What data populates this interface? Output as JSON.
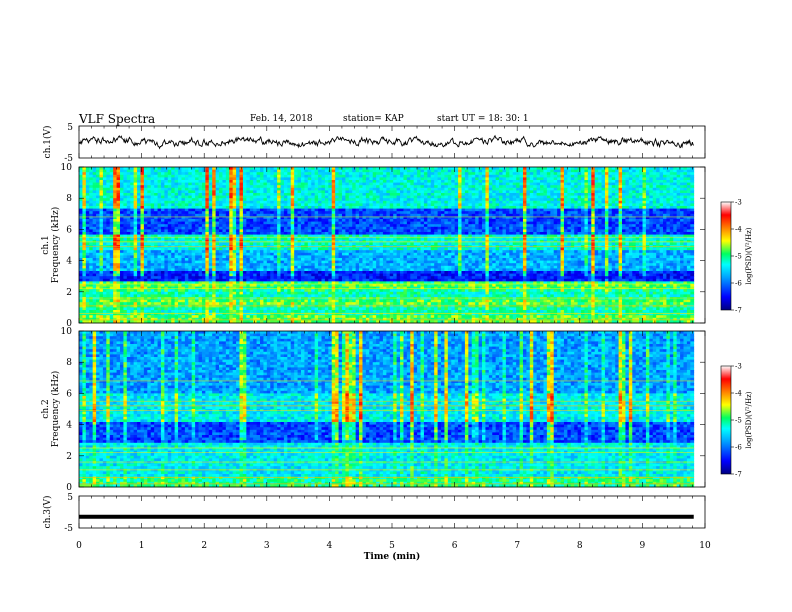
{
  "header": {
    "title": "VLF Spectra",
    "date": "Feb. 14, 2018",
    "station": "station= KAP",
    "start": "start  UT =   18: 30: 1"
  },
  "chart_data": [
    {
      "type": "line",
      "panel": "ch1-waveform",
      "ylabel": "ch.1(V)",
      "ylim": [
        -5,
        5
      ],
      "yticks": [
        "5",
        "-5"
      ],
      "xlim": [
        0,
        10
      ],
      "series": [
        {
          "description_only": true,
          "mean": 0,
          "approx_amplitude": 1.5
        }
      ]
    },
    {
      "type": "heatmap",
      "panel": "ch1-spectrogram",
      "ylabel_line1": "ch.1",
      "ylabel_line2": "Frequency  (kHz)",
      "ylim": [
        0,
        10
      ],
      "yticks": [
        "0",
        "2",
        "4",
        "6",
        "8",
        "10"
      ],
      "xlim": [
        0,
        10
      ],
      "data_extent_x": 9.82,
      "colorbar": {
        "label": "log(PSD)(V²/Hz)",
        "range": [
          -7,
          -3
        ],
        "ticks": [
          "-3",
          "-4",
          "-5",
          "-6",
          "-7"
        ]
      }
    },
    {
      "type": "heatmap",
      "panel": "ch2-spectrogram",
      "ylabel_line1": "ch.2",
      "ylabel_line2": "Frequency  (kHz)",
      "ylim": [
        0,
        10
      ],
      "yticks": [
        "0",
        "2",
        "4",
        "6",
        "8",
        "10"
      ],
      "xlim": [
        0,
        10
      ],
      "data_extent_x": 9.82,
      "colorbar": {
        "label": "log(PSD)(V²/Hz)",
        "range": [
          -7,
          -3
        ],
        "ticks": [
          "-3",
          "-4",
          "-5",
          "-6",
          "-7"
        ]
      }
    },
    {
      "type": "line",
      "panel": "ch3-waveform",
      "ylabel": "ch.3(V)",
      "ylim": [
        -5,
        5
      ],
      "yticks": [
        "5",
        "-5"
      ],
      "xlim": [
        0,
        10
      ],
      "series": [
        {
          "constant": -1.5
        }
      ]
    }
  ],
  "xaxis": {
    "label": "Time  (min)",
    "ticks": [
      "0",
      "1",
      "2",
      "3",
      "4",
      "5",
      "6",
      "7",
      "8",
      "9",
      "10"
    ]
  },
  "colors": {
    "ch1_line": "#000000",
    "ch3_line": "#000000",
    "colormap": [
      "#000080",
      "#0000ff",
      "#00a0ff",
      "#00ffff",
      "#00ff60",
      "#ffff00",
      "#ff8000",
      "#ff0000",
      "#ffffff"
    ]
  }
}
